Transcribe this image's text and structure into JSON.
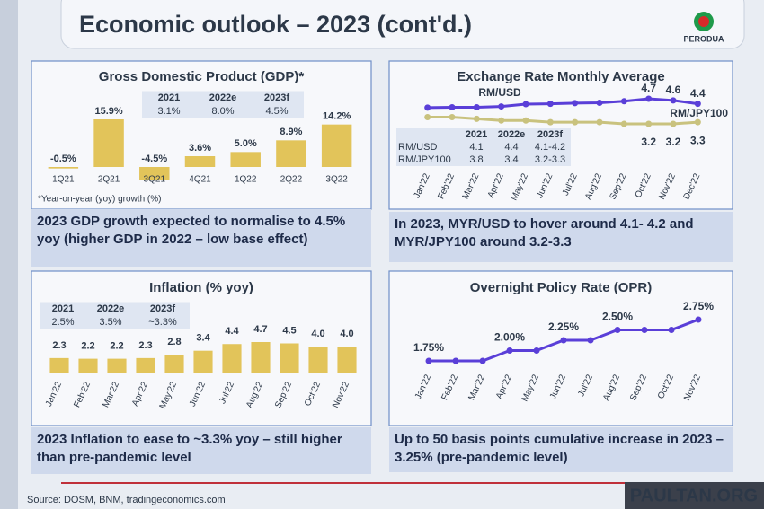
{
  "header": {
    "title": "Economic outlook – 2023 (cont'd.)",
    "logo": "PERODUA"
  },
  "source": "Source: DOSM, BNM, tradingeconomics.com",
  "watermark": "PAULTAN.ORG",
  "chart_data": [
    {
      "type": "bar",
      "title": "Gross Domestic Product (GDP)*",
      "categories": [
        "1Q21",
        "2Q21",
        "3Q21",
        "4Q21",
        "1Q22",
        "2Q22",
        "3Q22"
      ],
      "values": [
        -0.5,
        15.9,
        -4.5,
        3.6,
        5.0,
        8.9,
        14.2
      ],
      "value_labels": [
        "-0.5%",
        "15.9%",
        "-4.5%",
        "3.6%",
        "5.0%",
        "8.9%",
        "14.2%"
      ],
      "color": "#e2c45a",
      "table": {
        "header": [
          "2021",
          "2022e",
          "2023f"
        ],
        "rows": [
          [
            "3.1%",
            "8.0%",
            "4.5%"
          ]
        ]
      },
      "note": "*Year-on-year (yoy) growth (%)",
      "caption": "2023 GDP growth expected to normalise to 4.5% yoy (higher GDP in 2022 – low base effect)"
    },
    {
      "type": "line",
      "title": "Exchange Rate Monthly Average",
      "categories": [
        "Jan'22",
        "Feb'22",
        "Mar'22",
        "Apr'22",
        "May'22",
        "Jun'22",
        "Jul'22",
        "Aug'22",
        "Sep'22",
        "Oct'22",
        "Nov'22",
        "Dec'22"
      ],
      "series": [
        {
          "name": "RM/USD",
          "color": "#5a3fd8",
          "values": [
            4.17,
            4.19,
            4.19,
            4.24,
            4.38,
            4.4,
            4.44,
            4.46,
            4.55,
            4.7,
            4.6,
            4.4
          ],
          "value_labels": [
            null,
            null,
            null,
            null,
            null,
            null,
            null,
            null,
            null,
            "4.7",
            "4.6",
            "4.4"
          ]
        },
        {
          "name": "RM/JPY100",
          "color": "#c9c27e",
          "values": [
            3.6,
            3.6,
            3.5,
            3.4,
            3.4,
            3.3,
            3.3,
            3.3,
            3.2,
            3.2,
            3.2,
            3.3
          ],
          "value_labels": [
            null,
            null,
            null,
            null,
            null,
            null,
            null,
            null,
            null,
            "3.2",
            "3.2",
            "3.3"
          ]
        }
      ],
      "table": {
        "header": [
          "2021",
          "2022e",
          "2023f"
        ],
        "rows": [
          [
            "RM/USD",
            "4.1",
            "4.4",
            "4.1-4.2"
          ],
          [
            "RM/JPY100",
            "3.8",
            "3.4",
            "3.2-3.3"
          ]
        ]
      },
      "caption": "In 2023, MYR/USD to hover around 4.1- 4.2 and MYR/JPY100 around 3.2-3.3"
    },
    {
      "type": "bar",
      "title": "Inflation (% yoy)",
      "categories": [
        "Jan'22",
        "Feb'22",
        "Mar'22",
        "Apr'22",
        "May'22",
        "Jun'22",
        "Jul'22",
        "Aug'22",
        "Sep'22",
        "Oct'22",
        "Nov'22"
      ],
      "values": [
        2.3,
        2.2,
        2.2,
        2.3,
        2.8,
        3.4,
        4.4,
        4.7,
        4.5,
        4.0,
        4.0
      ],
      "value_labels": [
        "2.3",
        "2.2",
        "2.2",
        "2.3",
        "2.8",
        "3.4",
        "4.4",
        "4.7",
        "4.5",
        "4.0",
        "4.0"
      ],
      "color": "#e2c45a",
      "table": {
        "header": [
          "2021",
          "2022e",
          "2023f"
        ],
        "rows": [
          [
            "2.5%",
            "3.5%",
            "~3.3%"
          ]
        ]
      },
      "caption": "2023 Inflation to ease to ~3.3% yoy – still higher than pre-pandemic level"
    },
    {
      "type": "line",
      "title": "Overnight Policy Rate (OPR)",
      "categories": [
        "Jan'22",
        "Feb'22",
        "Mar'22",
        "Apr'22",
        "May'22",
        "Jun'22",
        "Jul'22",
        "Aug'22",
        "Sep'22",
        "Oct'22",
        "Nov'22"
      ],
      "series": [
        {
          "color": "#5a3fd8",
          "values": [
            1.75,
            1.75,
            1.75,
            2.0,
            2.0,
            2.25,
            2.25,
            2.5,
            2.5,
            2.5,
            2.75
          ],
          "value_labels": [
            "1.75%",
            null,
            null,
            "2.00%",
            null,
            "2.25%",
            null,
            "2.50%",
            null,
            null,
            "2.75%"
          ]
        }
      ],
      "caption": "Up to 50 basis points cumulative increase in 2023 – 3.25% (pre-pandemic level)"
    }
  ]
}
